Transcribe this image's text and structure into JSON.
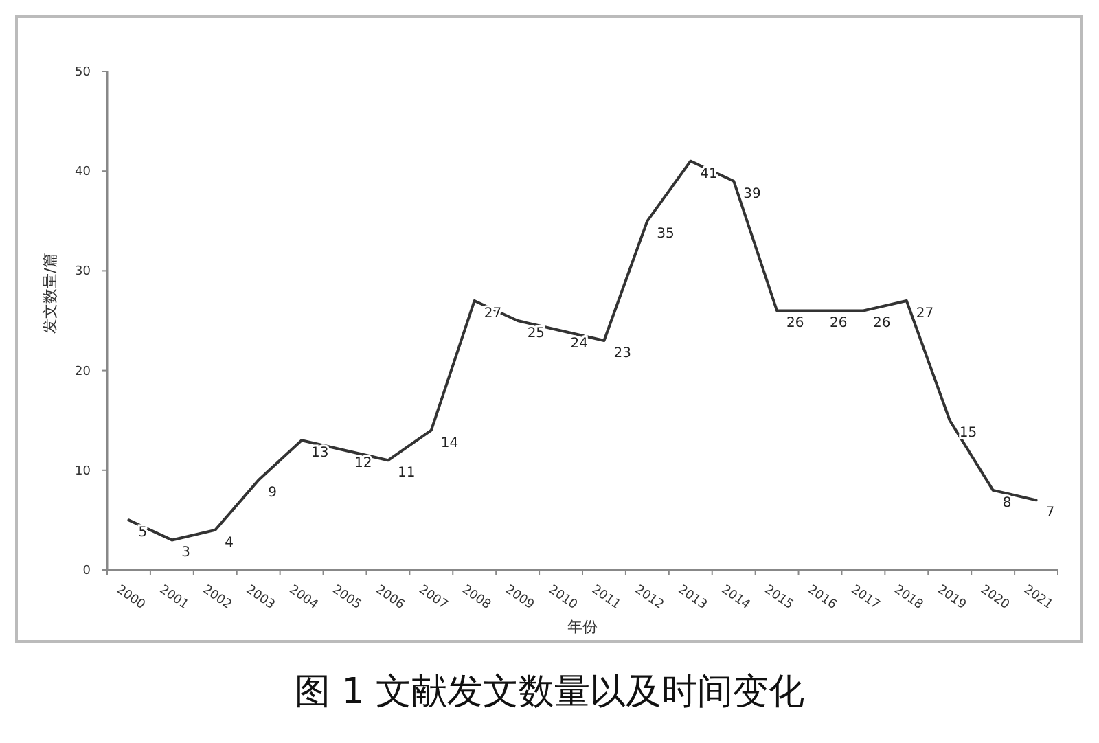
{
  "chart_data": {
    "type": "line",
    "title": "图 1 文献发文数量以及时间变化",
    "xlabel": "年份",
    "ylabel": "发文数量/篇",
    "categories": [
      "2000",
      "2001",
      "2002",
      "2003",
      "2004",
      "2005",
      "2006",
      "2007",
      "2008",
      "2009",
      "2010",
      "2011",
      "2012",
      "2013",
      "2014",
      "2015",
      "2016",
      "2017",
      "2018",
      "2019",
      "2020",
      "2021"
    ],
    "values": [
      5,
      3,
      4,
      9,
      13,
      12,
      11,
      14,
      27,
      25,
      24,
      23,
      35,
      41,
      39,
      26,
      26,
      26,
      27,
      15,
      8,
      7
    ],
    "color": "#333333",
    "ylim": [
      0,
      50
    ],
    "yticks": [
      0,
      10,
      20,
      30,
      40,
      50
    ],
    "data_labels": true,
    "marker": "none",
    "line_style": "solid",
    "grid": false
  }
}
